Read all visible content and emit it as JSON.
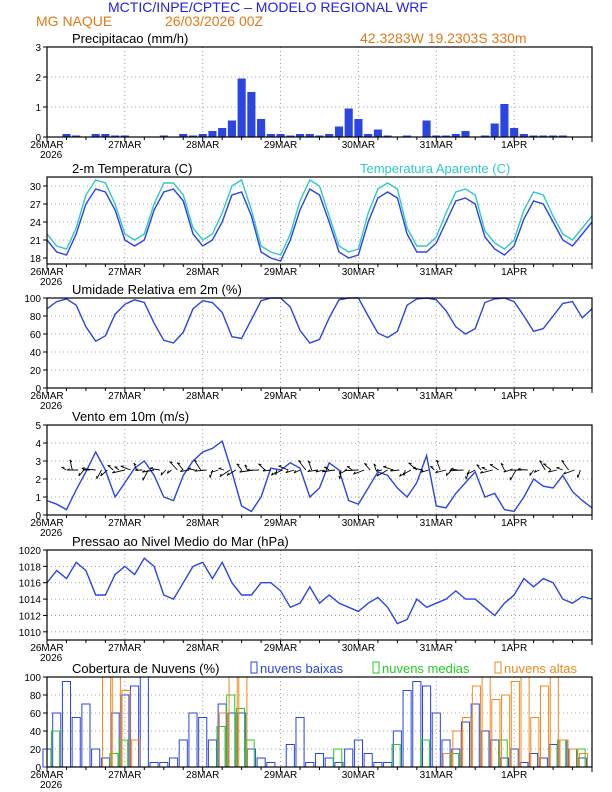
{
  "header": {
    "title": "MCTIC/INPE/CPTEC – MODELO REGIONAL WRF",
    "location": "MG NAQUE",
    "run": "26/03/2026 00Z",
    "coords": "42.3283W  19.2303S  330m"
  },
  "colors": {
    "title": "#2323dd",
    "header_orange": "#e07a1a",
    "blue": "#2a45e0",
    "cyan": "#30c8c8",
    "green": "#22cc22",
    "orange": "#f08a1e",
    "purple": "#8844cc",
    "black": "#000000"
  },
  "x_axis": {
    "start_label": "26MAR",
    "year_label": "2026",
    "days": [
      "26MAR",
      "27MAR",
      "28MAR",
      "29MAR",
      "30MAR",
      "31MAR",
      "1APR"
    ]
  },
  "chart_data": [
    {
      "id": "precip",
      "type": "bar",
      "title": "Precipitacao (mm/h)",
      "x_unit": "hours since 26MAR 00Z (3-hourly)",
      "ylim": [
        0,
        3
      ],
      "yticks": [
        0,
        1,
        2,
        3
      ],
      "series": [
        {
          "name": "Precipitacao",
          "x": [
            6,
            9,
            12,
            15,
            18,
            21,
            24,
            27,
            30,
            33,
            36,
            39,
            42,
            45,
            48,
            51,
            54,
            57,
            60,
            63,
            66,
            69,
            72,
            75,
            78,
            81,
            84,
            87,
            90,
            93,
            96,
            99,
            102,
            105,
            108,
            111,
            114,
            117,
            120,
            123,
            126,
            129,
            132,
            135,
            138,
            141,
            144,
            147,
            150,
            153,
            156,
            159,
            162,
            165
          ],
          "values": [
            0.1,
            0.05,
            0,
            0.1,
            0.1,
            0.05,
            0.05,
            0,
            0,
            0,
            0.05,
            0,
            0.1,
            0.05,
            0.1,
            0.2,
            0.3,
            0.55,
            1.95,
            1.5,
            0.6,
            0.1,
            0.1,
            0.05,
            0.1,
            0.1,
            0.05,
            0.1,
            0.35,
            0.95,
            0.6,
            0.1,
            0.25,
            0.05,
            0,
            0.05,
            0,
            0.55,
            0.05,
            0.05,
            0.1,
            0.2,
            0,
            0.05,
            0.45,
            1.1,
            0.3,
            0.1,
            0.05,
            0.05,
            0.05,
            0.05,
            0,
            0
          ]
        }
      ]
    },
    {
      "id": "temp",
      "type": "line",
      "title": "2-m Temperatura (C)",
      "legend": "Temperatura Aparente (C)",
      "ylim": [
        17,
        31.5
      ],
      "yticks": [
        18,
        21,
        24,
        27,
        30
      ],
      "series": [
        {
          "name": "2-m Temperatura (C)",
          "x": [
            0,
            3,
            6,
            9,
            12,
            15,
            18,
            21,
            24,
            27,
            30,
            33,
            36,
            39,
            42,
            45,
            48,
            51,
            54,
            57,
            60,
            63,
            66,
            69,
            72,
            75,
            78,
            81,
            84,
            87,
            90,
            93,
            96,
            99,
            102,
            105,
            108,
            111,
            114,
            117,
            120,
            123,
            126,
            129,
            132,
            135,
            138,
            141,
            144,
            147,
            150,
            153,
            156,
            159,
            162,
            165,
            168
          ],
          "values": [
            21,
            19,
            18.5,
            22,
            27,
            29.5,
            29,
            26,
            21,
            20,
            21,
            26,
            29,
            29.5,
            27.5,
            22,
            20,
            21,
            24,
            28.5,
            29,
            25,
            19,
            18,
            17.5,
            21,
            26,
            29.5,
            28.5,
            24,
            19,
            18,
            18.5,
            24,
            28,
            29,
            28,
            22,
            19,
            19,
            20.5,
            24,
            27.5,
            28,
            27,
            21.5,
            19.5,
            18.5,
            20,
            24.5,
            27.5,
            27,
            24,
            21,
            20,
            22,
            24
          ]
        },
        {
          "name": "Temperatura Aparente (C)",
          "x": [
            0,
            3,
            6,
            9,
            12,
            15,
            18,
            21,
            24,
            27,
            30,
            33,
            36,
            39,
            42,
            45,
            48,
            51,
            54,
            57,
            60,
            63,
            66,
            69,
            72,
            75,
            78,
            81,
            84,
            87,
            90,
            93,
            96,
            99,
            102,
            105,
            108,
            111,
            114,
            117,
            120,
            123,
            126,
            129,
            132,
            135,
            138,
            141,
            144,
            147,
            150,
            153,
            156,
            159,
            162,
            165,
            168
          ],
          "values": [
            22,
            20,
            19.5,
            23,
            28.5,
            31,
            30.5,
            27,
            22,
            21,
            22,
            27,
            30.5,
            30.5,
            28.5,
            23,
            21,
            22,
            25.5,
            30,
            31,
            26,
            20,
            19,
            18.5,
            22,
            27.5,
            31,
            30,
            25,
            20,
            19,
            19.5,
            25.5,
            29.5,
            30.5,
            29.5,
            23,
            20,
            20,
            21.5,
            25.5,
            29,
            29.5,
            28.5,
            22.5,
            20.5,
            19.5,
            21,
            26,
            29,
            28.5,
            25,
            22,
            21,
            23,
            25
          ]
        }
      ]
    },
    {
      "id": "rh",
      "type": "line",
      "title": "Umidade Relativa em 2m (%)",
      "ylim": [
        0,
        100
      ],
      "yticks": [
        0,
        20,
        40,
        60,
        80,
        100
      ],
      "series": [
        {
          "name": "Umidade Relativa",
          "x": [
            0,
            3,
            6,
            9,
            12,
            15,
            18,
            21,
            24,
            27,
            30,
            33,
            36,
            39,
            42,
            45,
            48,
            51,
            54,
            57,
            60,
            63,
            66,
            69,
            72,
            75,
            78,
            81,
            84,
            87,
            90,
            93,
            96,
            99,
            102,
            105,
            108,
            111,
            114,
            117,
            120,
            123,
            126,
            129,
            132,
            135,
            138,
            141,
            144,
            147,
            150,
            153,
            156,
            159,
            162,
            165,
            168
          ],
          "values": [
            88,
            96,
            99,
            92,
            68,
            52,
            58,
            82,
            93,
            98,
            95,
            72,
            53,
            50,
            62,
            88,
            97,
            95,
            84,
            57,
            55,
            76,
            97,
            100,
            100,
            90,
            64,
            50,
            54,
            78,
            98,
            100,
            100,
            80,
            61,
            56,
            63,
            92,
            99,
            100,
            98,
            86,
            68,
            60,
            66,
            95,
            99,
            100,
            96,
            80,
            63,
            66,
            80,
            94,
            96,
            78,
            88
          ]
        }
      ]
    },
    {
      "id": "wind",
      "type": "line",
      "title": "Vento em 10m (m/s)",
      "ylim": [
        0,
        5
      ],
      "yticks": [
        0,
        1,
        2,
        3,
        4,
        5
      ],
      "series": [
        {
          "name": "Vento em 10m",
          "x": [
            0,
            3,
            6,
            9,
            12,
            15,
            18,
            21,
            24,
            27,
            30,
            33,
            36,
            39,
            42,
            45,
            48,
            51,
            54,
            57,
            60,
            63,
            66,
            69,
            72,
            75,
            78,
            81,
            84,
            87,
            90,
            93,
            96,
            99,
            102,
            105,
            108,
            111,
            114,
            117,
            120,
            123,
            126,
            129,
            132,
            135,
            138,
            141,
            144,
            147,
            150,
            153,
            156,
            159,
            162,
            165,
            168
          ],
          "values": [
            0.8,
            0.6,
            0.3,
            1.4,
            2.4,
            3.5,
            2.5,
            1.0,
            1.8,
            2.6,
            3.0,
            2.2,
            1.0,
            0.8,
            2.2,
            3.0,
            3.5,
            3.7,
            4.1,
            2.4,
            0.5,
            0.2,
            1.0,
            2.6,
            2.5,
            2.9,
            2.6,
            1.0,
            1.5,
            2.9,
            2.5,
            0.8,
            0.6,
            1.5,
            2.4,
            2.2,
            1.5,
            1.0,
            1.8,
            3.3,
            0.5,
            0.4,
            1.2,
            1.8,
            2.4,
            1.0,
            1.2,
            0.3,
            0.2,
            1.0,
            2.0,
            1.6,
            1.5,
            2.2,
            1.3,
            0.8,
            0.4
          ]
        }
      ]
    },
    {
      "id": "pressure",
      "type": "line",
      "title": "Pressao ao Nivel Medio do Mar (hPa)",
      "ylim": [
        1009,
        1020
      ],
      "yticks": [
        1010,
        1012,
        1014,
        1016,
        1018,
        1020
      ],
      "series": [
        {
          "name": "Pressao",
          "x": [
            0,
            3,
            6,
            9,
            12,
            15,
            18,
            21,
            24,
            27,
            30,
            33,
            36,
            39,
            42,
            45,
            48,
            51,
            54,
            57,
            60,
            63,
            66,
            69,
            72,
            75,
            78,
            81,
            84,
            87,
            90,
            93,
            96,
            99,
            102,
            105,
            108,
            111,
            114,
            117,
            120,
            123,
            126,
            129,
            132,
            135,
            138,
            141,
            144,
            147,
            150,
            153,
            156,
            159,
            162,
            165,
            168
          ],
          "values": [
            1016,
            1017.5,
            1016.5,
            1018.5,
            1017.5,
            1014.5,
            1014.5,
            1017,
            1018,
            1017,
            1019,
            1018,
            1014.5,
            1014,
            1016,
            1018,
            1018.5,
            1016.5,
            1018.5,
            1016,
            1014.5,
            1014.5,
            1016,
            1016,
            1015,
            1013,
            1013.5,
            1015.5,
            1013.5,
            1014.5,
            1013.5,
            1013,
            1012.5,
            1013.5,
            1014.2,
            1013,
            1011,
            1011.5,
            1014,
            1013,
            1013.5,
            1014,
            1015,
            1014,
            1014,
            1013,
            1012,
            1013.5,
            1014.5,
            1016.5,
            1015.5,
            1016.5,
            1016,
            1014,
            1013.5,
            1014.3,
            1014
          ]
        }
      ]
    },
    {
      "id": "clouds",
      "type": "bar",
      "title": "Cobertura de Nuvens (%)",
      "legend": [
        "nuvens baixas",
        "nuvens medias",
        "nuvens altas"
      ],
      "ylim": [
        0,
        100
      ],
      "yticks": [
        0,
        20,
        40,
        60,
        80,
        100
      ],
      "series": [
        {
          "name": "nuvens baixas",
          "x": [
            0,
            3,
            6,
            9,
            12,
            15,
            18,
            21,
            24,
            27,
            30,
            33,
            36,
            39,
            42,
            45,
            48,
            51,
            54,
            57,
            60,
            63,
            66,
            69,
            72,
            75,
            78,
            81,
            84,
            87,
            90,
            93,
            96,
            99,
            102,
            105,
            108,
            111,
            114,
            117,
            120,
            123,
            126,
            129,
            132,
            135,
            138,
            141,
            144,
            147,
            150,
            153,
            156,
            159,
            162,
            165
          ],
          "values": [
            20,
            60,
            95,
            55,
            70,
            20,
            10,
            60,
            80,
            90,
            100,
            5,
            5,
            10,
            30,
            60,
            55,
            30,
            70,
            60,
            60,
            20,
            10,
            5,
            0,
            25,
            55,
            5,
            15,
            10,
            5,
            20,
            30,
            15,
            5,
            5,
            40,
            85,
            95,
            90,
            60,
            30,
            20,
            50,
            70,
            40,
            30,
            10,
            20,
            5,
            15,
            10,
            25,
            30,
            20,
            10
          ]
        },
        {
          "name": "nuvens medias",
          "x": [
            3,
            21,
            24,
            54,
            57,
            60,
            63,
            90,
            108,
            117,
            126,
            141,
            159,
            165
          ],
          "values": [
            40,
            15,
            30,
            45,
            80,
            65,
            30,
            20,
            25,
            30,
            15,
            30,
            30,
            20
          ]
        },
        {
          "name": "nuvens altas",
          "x": [
            18,
            21,
            24,
            27,
            54,
            57,
            60,
            123,
            126,
            129,
            132,
            135,
            138,
            141,
            144,
            147,
            150,
            153,
            156,
            159,
            162,
            165
          ],
          "values": [
            100,
            100,
            85,
            30,
            60,
            100,
            100,
            15,
            40,
            55,
            90,
            100,
            75,
            80,
            95,
            100,
            55,
            90,
            100,
            30,
            20,
            15
          ]
        }
      ]
    }
  ]
}
